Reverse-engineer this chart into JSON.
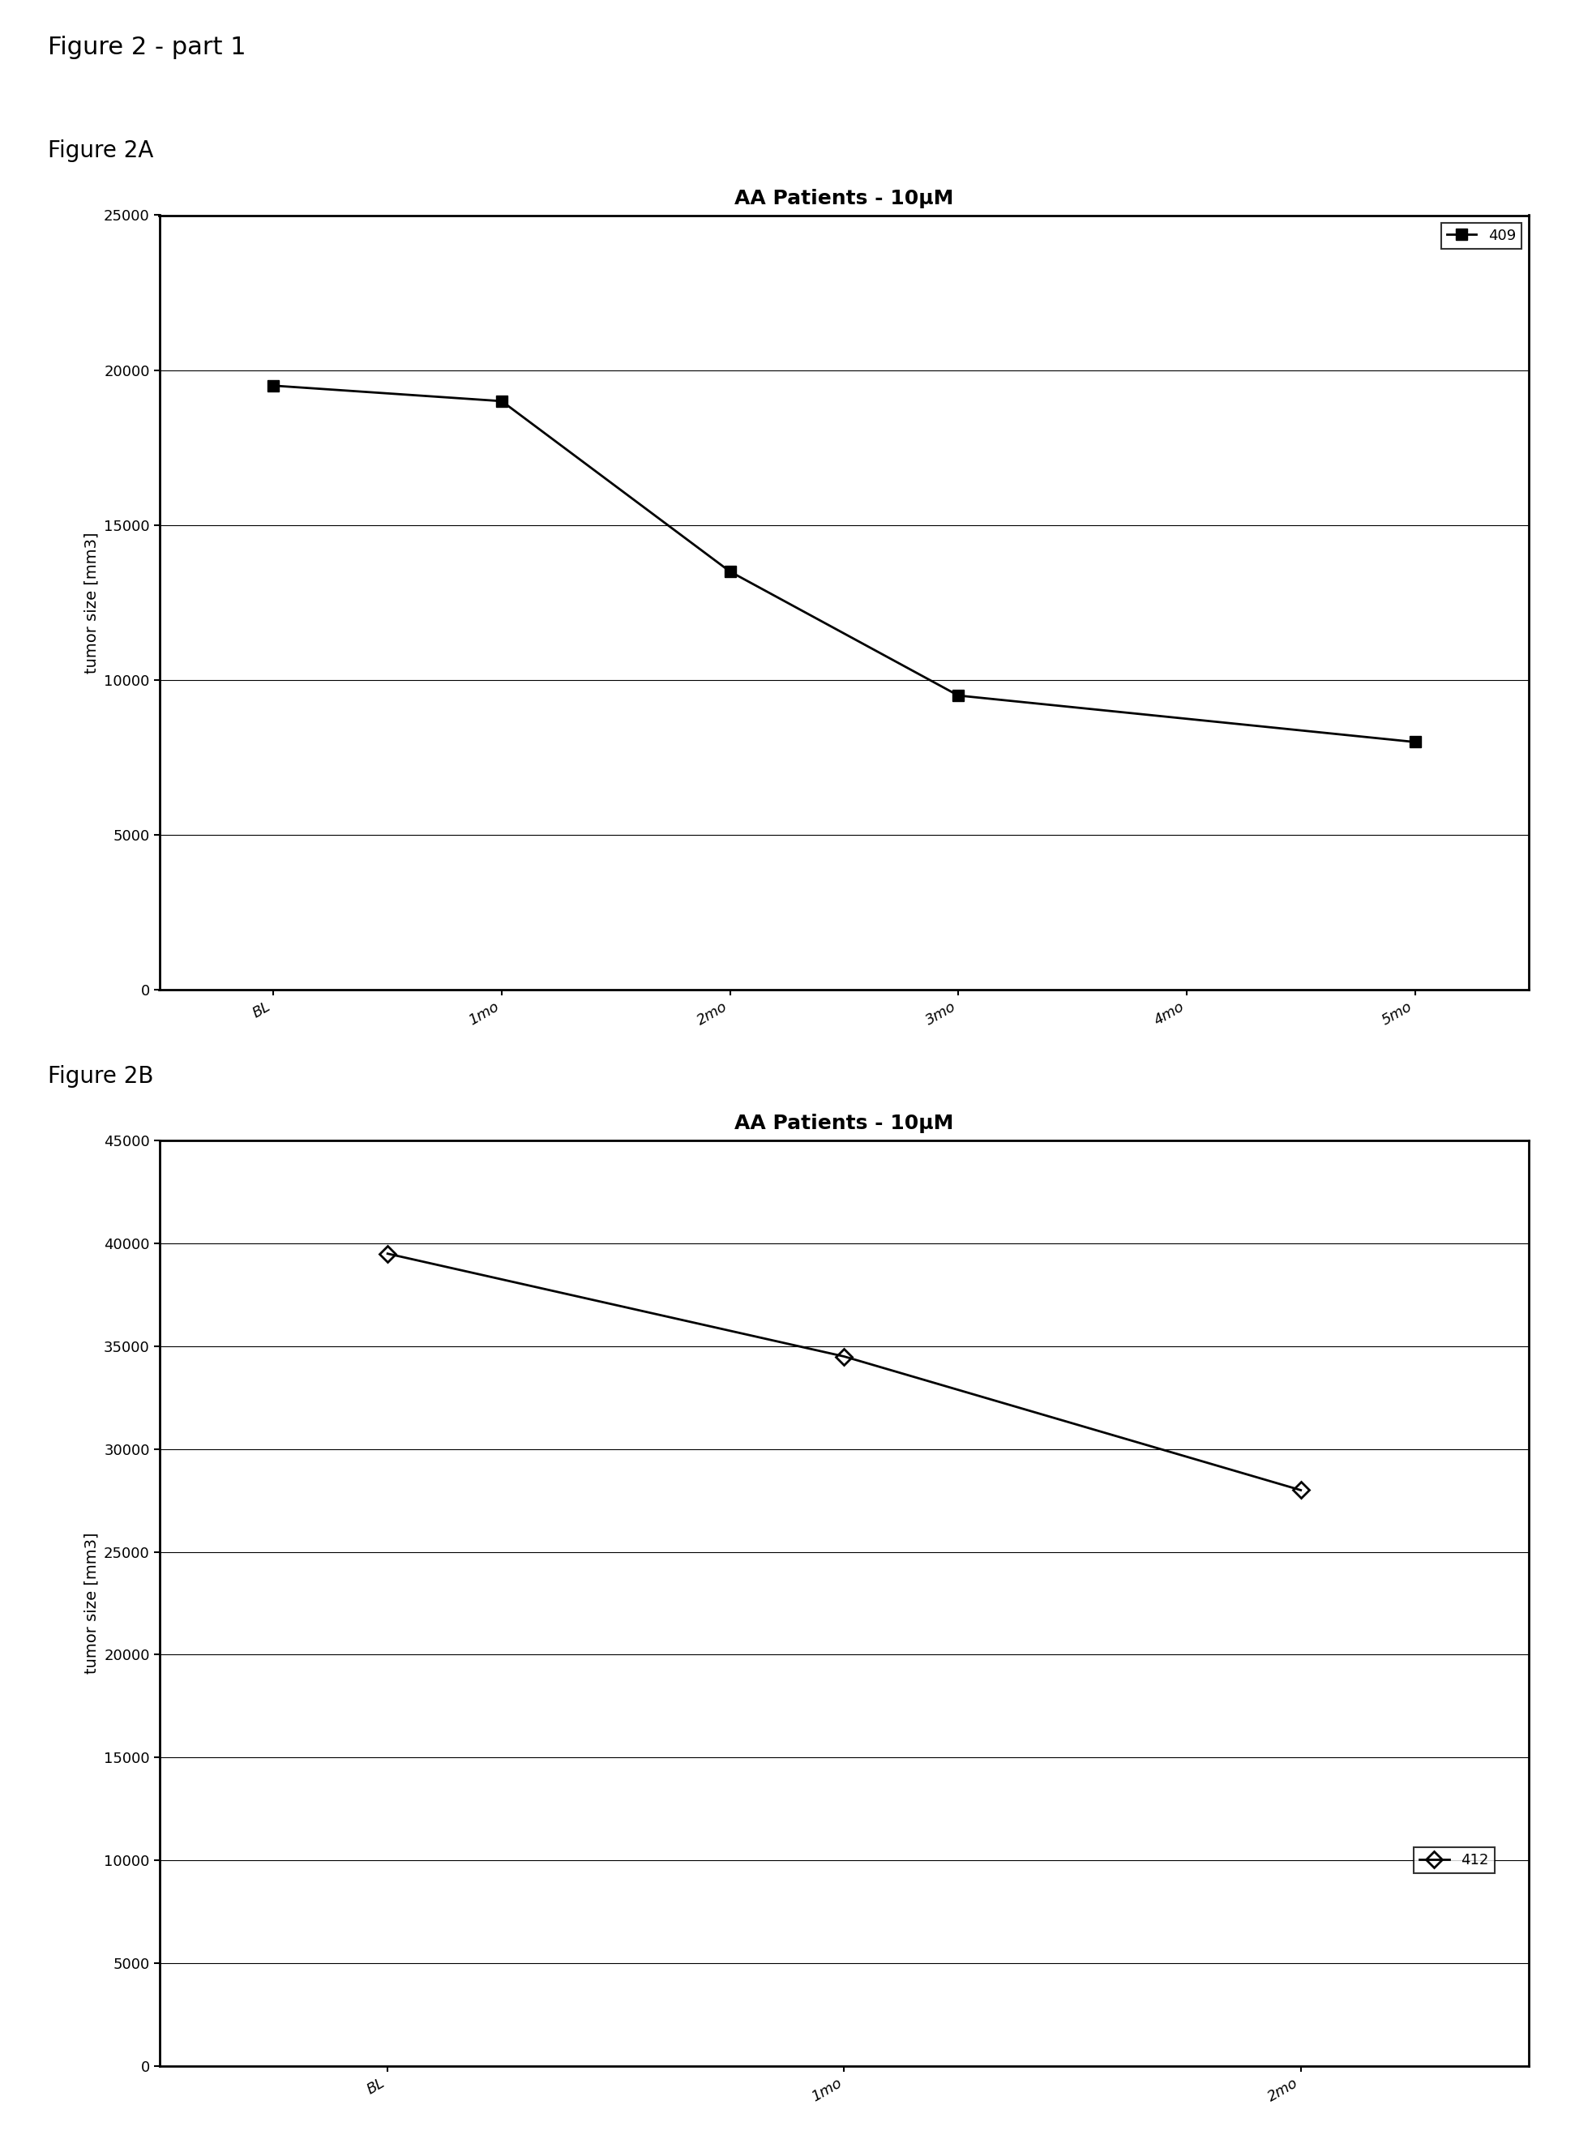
{
  "fig2_part1_label": "Figure 2 - part 1",
  "fig2A_label": "Figure 2A",
  "fig2B_label": "Figure 2B",
  "chartA": {
    "title": "AA Patients - 10μM",
    "xlabel": "",
    "ylabel": "tumor size [mm3]",
    "x_labels": [
      "BL",
      "1mo",
      "2mo",
      "3mo",
      "4mo",
      "5mo"
    ],
    "series": [
      {
        "label": "409",
        "values": [
          19500,
          19000,
          13500,
          9500,
          null,
          8000
        ],
        "color": "#000000",
        "marker": "s"
      }
    ],
    "ylim": [
      0,
      25000
    ],
    "yticks": [
      0,
      5000,
      10000,
      15000,
      20000,
      25000
    ],
    "legend_loc": "upper right"
  },
  "chartB": {
    "title": "AA Patients - 10μM",
    "xlabel": "",
    "ylabel": "tumor size [mm3]",
    "x_labels": [
      "BL",
      "1mo",
      "2mo"
    ],
    "series": [
      {
        "label": "412",
        "values": [
          39500,
          34500,
          28000
        ],
        "color": "#000000",
        "marker": "D"
      }
    ],
    "ylim": [
      0,
      45000
    ],
    "yticks": [
      0,
      5000,
      10000,
      15000,
      20000,
      25000,
      30000,
      35000,
      40000,
      45000
    ],
    "legend_loc": "center right"
  },
  "background_color": "#ffffff",
  "text_color": "#000000",
  "title_fontsize": 18,
  "label_fontsize": 14,
  "tick_fontsize": 13,
  "header_fontsize_large": 22,
  "header_fontsize_small": 20
}
